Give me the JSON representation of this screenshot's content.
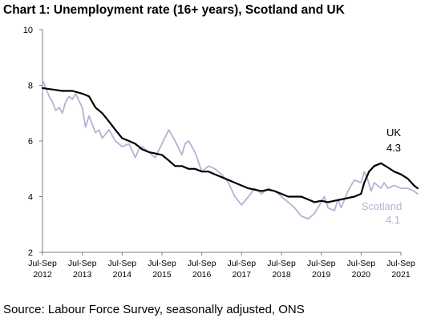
{
  "chart_data": {
    "type": "line",
    "title": "Chart 1: Unemployment rate (16+ years), Scotland and UK",
    "source": "Source: Labour Force Survey, seasonally adjusted, ONS",
    "xlabel": "",
    "ylabel": "",
    "ylim": [
      2,
      10
    ],
    "yticks": [
      2,
      4,
      6,
      8,
      10
    ],
    "xlim": [
      2012.0,
      2021.0
    ],
    "grid": false,
    "xticks": [
      {
        "x": 2012,
        "line1": "Jul-Sep",
        "line2": "2012"
      },
      {
        "x": 2013,
        "line1": "Jul-Sep",
        "line2": "2013"
      },
      {
        "x": 2014,
        "line1": "Jul-Sep",
        "line2": "2014"
      },
      {
        "x": 2015,
        "line1": "Jul-Sep",
        "line2": "2015"
      },
      {
        "x": 2016,
        "line1": "Jul-Sep",
        "line2": "2016"
      },
      {
        "x": 2017,
        "line1": "Jul-Sep",
        "line2": "2017"
      },
      {
        "x": 2018,
        "line1": "Jul-Sep",
        "line2": "2018"
      },
      {
        "x": 2019,
        "line1": "Jul-Sep",
        "line2": "2019"
      },
      {
        "x": 2020,
        "line1": "Jul-Sep",
        "line2": "2020"
      },
      {
        "x": 2021,
        "line1": "Jul-Sep",
        "line2": "2021"
      }
    ],
    "series": [
      {
        "name": "UK",
        "latest_label": "4.3",
        "color": "#000000",
        "points": [
          [
            2012.0,
            7.9
          ],
          [
            2012.25,
            7.85
          ],
          [
            2012.5,
            7.8
          ],
          [
            2012.75,
            7.8
          ],
          [
            2013.0,
            7.7
          ],
          [
            2013.17,
            7.6
          ],
          [
            2013.33,
            7.2
          ],
          [
            2013.5,
            7.0
          ],
          [
            2013.67,
            6.7
          ],
          [
            2013.83,
            6.4
          ],
          [
            2014.0,
            6.1
          ],
          [
            2014.17,
            6.0
          ],
          [
            2014.33,
            5.9
          ],
          [
            2014.5,
            5.7
          ],
          [
            2014.67,
            5.6
          ],
          [
            2014.83,
            5.55
          ],
          [
            2015.0,
            5.5
          ],
          [
            2015.17,
            5.3
          ],
          [
            2015.33,
            5.1
          ],
          [
            2015.5,
            5.1
          ],
          [
            2015.67,
            5.0
          ],
          [
            2015.83,
            5.0
          ],
          [
            2016.0,
            4.9
          ],
          [
            2016.17,
            4.9
          ],
          [
            2016.33,
            4.8
          ],
          [
            2016.5,
            4.7
          ],
          [
            2016.67,
            4.6
          ],
          [
            2016.83,
            4.5
          ],
          [
            2017.0,
            4.4
          ],
          [
            2017.17,
            4.3
          ],
          [
            2017.33,
            4.25
          ],
          [
            2017.5,
            4.2
          ],
          [
            2017.67,
            4.25
          ],
          [
            2017.83,
            4.2
          ],
          [
            2018.0,
            4.1
          ],
          [
            2018.17,
            4.0
          ],
          [
            2018.33,
            4.0
          ],
          [
            2018.5,
            4.0
          ],
          [
            2018.67,
            3.9
          ],
          [
            2018.83,
            3.8
          ],
          [
            2019.0,
            3.85
          ],
          [
            2019.17,
            3.8
          ],
          [
            2019.33,
            3.85
          ],
          [
            2019.5,
            3.9
          ],
          [
            2019.67,
            3.95
          ],
          [
            2019.83,
            4.0
          ],
          [
            2020.0,
            4.1
          ],
          [
            2020.08,
            4.5
          ],
          [
            2020.2,
            4.9
          ],
          [
            2020.33,
            5.1
          ],
          [
            2020.5,
            5.2
          ],
          [
            2020.67,
            5.05
          ],
          [
            2020.83,
            4.9
          ],
          [
            2021.0,
            4.8
          ],
          [
            2021.17,
            4.65
          ],
          [
            2021.33,
            4.4
          ],
          [
            2021.42,
            4.3
          ]
        ]
      },
      {
        "name": "Scotland",
        "latest_label": "4.1",
        "color": "#b7b1d4",
        "points": [
          [
            2012.0,
            8.2
          ],
          [
            2012.08,
            7.9
          ],
          [
            2012.17,
            7.6
          ],
          [
            2012.25,
            7.4
          ],
          [
            2012.33,
            7.1
          ],
          [
            2012.42,
            7.2
          ],
          [
            2012.5,
            7.0
          ],
          [
            2012.58,
            7.4
          ],
          [
            2012.67,
            7.6
          ],
          [
            2012.75,
            7.5
          ],
          [
            2012.83,
            7.7
          ],
          [
            2013.0,
            7.2
          ],
          [
            2013.08,
            6.5
          ],
          [
            2013.17,
            6.9
          ],
          [
            2013.25,
            6.6
          ],
          [
            2013.33,
            6.3
          ],
          [
            2013.42,
            6.4
          ],
          [
            2013.5,
            6.1
          ],
          [
            2013.67,
            6.4
          ],
          [
            2013.83,
            6.0
          ],
          [
            2014.0,
            5.8
          ],
          [
            2014.17,
            5.9
          ],
          [
            2014.33,
            5.4
          ],
          [
            2014.42,
            5.7
          ],
          [
            2014.5,
            5.8
          ],
          [
            2014.67,
            5.6
          ],
          [
            2014.83,
            5.4
          ],
          [
            2015.0,
            5.9
          ],
          [
            2015.17,
            6.4
          ],
          [
            2015.33,
            6.0
          ],
          [
            2015.5,
            5.5
          ],
          [
            2015.58,
            5.9
          ],
          [
            2015.67,
            6.0
          ],
          [
            2015.83,
            5.6
          ],
          [
            2016.0,
            4.9
          ],
          [
            2016.17,
            5.1
          ],
          [
            2016.33,
            5.0
          ],
          [
            2016.5,
            4.8
          ],
          [
            2016.67,
            4.5
          ],
          [
            2016.83,
            4.0
          ],
          [
            2017.0,
            3.7
          ],
          [
            2017.17,
            4.0
          ],
          [
            2017.33,
            4.3
          ],
          [
            2017.42,
            4.2
          ],
          [
            2017.5,
            4.1
          ],
          [
            2017.67,
            4.3
          ],
          [
            2017.83,
            4.2
          ],
          [
            2018.0,
            4.0
          ],
          [
            2018.17,
            3.8
          ],
          [
            2018.33,
            3.6
          ],
          [
            2018.5,
            3.3
          ],
          [
            2018.67,
            3.2
          ],
          [
            2018.83,
            3.4
          ],
          [
            2019.0,
            3.8
          ],
          [
            2019.08,
            4.0
          ],
          [
            2019.17,
            3.6
          ],
          [
            2019.33,
            3.5
          ],
          [
            2019.42,
            3.9
          ],
          [
            2019.5,
            3.6
          ],
          [
            2019.67,
            4.2
          ],
          [
            2019.83,
            4.6
          ],
          [
            2020.0,
            4.5
          ],
          [
            2020.08,
            4.9
          ],
          [
            2020.17,
            4.6
          ],
          [
            2020.25,
            4.2
          ],
          [
            2020.33,
            4.5
          ],
          [
            2020.5,
            4.3
          ],
          [
            2020.58,
            4.5
          ],
          [
            2020.67,
            4.3
          ],
          [
            2020.83,
            4.4
          ],
          [
            2021.0,
            4.3
          ],
          [
            2021.17,
            4.3
          ],
          [
            2021.33,
            4.2
          ],
          [
            2021.42,
            4.1
          ]
        ]
      }
    ]
  }
}
